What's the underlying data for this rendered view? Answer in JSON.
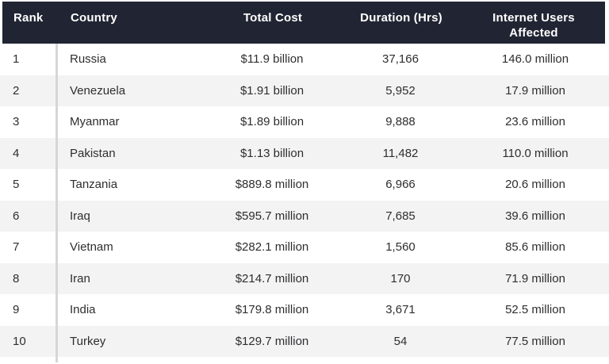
{
  "chart_data": {
    "type": "table",
    "title": "",
    "columns": [
      "Rank",
      "Country",
      "Total Cost",
      "Duration (Hrs)",
      "Internet Users Affected"
    ],
    "rows": [
      {
        "rank": "1",
        "country": "Russia",
        "total_cost": "$11.9 billion",
        "duration_hrs": "37,166",
        "users_affected": "146.0 million"
      },
      {
        "rank": "2",
        "country": "Venezuela",
        "total_cost": "$1.91 billion",
        "duration_hrs": "5,952",
        "users_affected": "17.9 million"
      },
      {
        "rank": "3",
        "country": "Myanmar",
        "total_cost": "$1.89 billion",
        "duration_hrs": "9,888",
        "users_affected": "23.6 million"
      },
      {
        "rank": "4",
        "country": "Pakistan",
        "total_cost": "$1.13 billion",
        "duration_hrs": "11,482",
        "users_affected": "110.0 million"
      },
      {
        "rank": "5",
        "country": "Tanzania",
        "total_cost": "$889.8 million",
        "duration_hrs": "6,966",
        "users_affected": "20.6 million"
      },
      {
        "rank": "6",
        "country": "Iraq",
        "total_cost": "$595.7 million",
        "duration_hrs": "7,685",
        "users_affected": "39.6 million"
      },
      {
        "rank": "7",
        "country": "Vietnam",
        "total_cost": "$282.1 million",
        "duration_hrs": "1,560",
        "users_affected": "85.6 million"
      },
      {
        "rank": "8",
        "country": "Iran",
        "total_cost": "$214.7 million",
        "duration_hrs": "170",
        "users_affected": "71.9 million"
      },
      {
        "rank": "9",
        "country": "India",
        "total_cost": "$179.8 million",
        "duration_hrs": "3,671",
        "users_affected": "52.5 million"
      },
      {
        "rank": "10",
        "country": "Turkey",
        "total_cost": "$129.7 million",
        "duration_hrs": "54",
        "users_affected": "77.5 million"
      }
    ]
  },
  "table": {
    "columns": [
      {
        "label": "Rank"
      },
      {
        "label": "Country"
      },
      {
        "label": "Total Cost"
      },
      {
        "label": "Duration (Hrs)"
      },
      {
        "label": "Internet Users Affected"
      }
    ],
    "rows": [
      {
        "rank": "1",
        "country": "Russia",
        "total_cost": "$11.9 billion",
        "duration_hrs": "37,166",
        "users_affected": "146.0 million"
      },
      {
        "rank": "2",
        "country": "Venezuela",
        "total_cost": "$1.91 billion",
        "duration_hrs": "5,952",
        "users_affected": "17.9 million"
      },
      {
        "rank": "3",
        "country": "Myanmar",
        "total_cost": "$1.89 billion",
        "duration_hrs": "9,888",
        "users_affected": "23.6 million"
      },
      {
        "rank": "4",
        "country": "Pakistan",
        "total_cost": "$1.13 billion",
        "duration_hrs": "11,482",
        "users_affected": "110.0 million"
      },
      {
        "rank": "5",
        "country": "Tanzania",
        "total_cost": "$889.8 million",
        "duration_hrs": "6,966",
        "users_affected": "20.6 million"
      },
      {
        "rank": "6",
        "country": "Iraq",
        "total_cost": "$595.7 million",
        "duration_hrs": "7,685",
        "users_affected": "39.6 million"
      },
      {
        "rank": "7",
        "country": "Vietnam",
        "total_cost": "$282.1 million",
        "duration_hrs": "1,560",
        "users_affected": "85.6 million"
      },
      {
        "rank": "8",
        "country": "Iran",
        "total_cost": "$214.7 million",
        "duration_hrs": "170",
        "users_affected": "71.9 million"
      },
      {
        "rank": "9",
        "country": "India",
        "total_cost": "$179.8 million",
        "duration_hrs": "3,671",
        "users_affected": "52.5 million"
      },
      {
        "rank": "10",
        "country": "Turkey",
        "total_cost": "$129.7 million",
        "duration_hrs": "54",
        "users_affected": "77.5 million"
      }
    ]
  },
  "colors": {
    "header_bg": "#212533",
    "header_text": "#ffffff",
    "row_bg": "#ffffff",
    "row_alt_bg": "#f3f3f4",
    "body_text": "#2e2e30",
    "divider": "#d6d6d8"
  }
}
